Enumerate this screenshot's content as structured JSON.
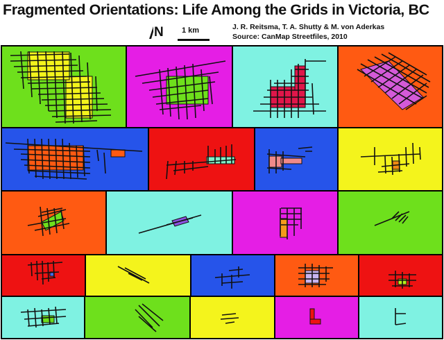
{
  "title": "Fragmented Orientations: Life Among the Grids in Victoria, BC",
  "credits": {
    "authors": "J. R. Reitsma, T. A. Shutty & M. von Aderkas",
    "source": "Source: CanMap Streetfiles, 2010"
  },
  "north_arrow": {
    "label": "N",
    "icon": "north-arrow-icon"
  },
  "scale_bar": {
    "label": "1 km"
  },
  "colors": {
    "green": "#6ee01c",
    "magenta": "#e51ee5",
    "aqua": "#7ff2e2",
    "orange": "#ff5a12",
    "blue": "#2654ea",
    "red": "#ee1212",
    "yellow": "#f4f41c",
    "street": "#111111"
  },
  "panels": [
    {
      "id": "p1",
      "color": "green",
      "fill": "#f4f41c"
    },
    {
      "id": "p2",
      "color": "magenta",
      "fill": "#6ee01c"
    },
    {
      "id": "p3",
      "color": "aqua",
      "fill": "#e0164a"
    },
    {
      "id": "p4",
      "color": "orange",
      "fill": "#d45ad8"
    },
    {
      "id": "p5",
      "color": "blue",
      "fill": "#ff5a12"
    },
    {
      "id": "p6",
      "color": "red",
      "fill": "#7ff2c8"
    },
    {
      "id": "p7",
      "color": "blue",
      "fill": "#f08a8a"
    },
    {
      "id": "p8",
      "color": "yellow",
      "fill": "#f08a12"
    },
    {
      "id": "p9",
      "color": "orange",
      "fill": "#6ee01c"
    },
    {
      "id": "p10",
      "color": "aqua",
      "fill": "#8a52e0"
    },
    {
      "id": "p11",
      "color": "magenta",
      "fill": "#f49a1c"
    },
    {
      "id": "p12",
      "color": "green",
      "fill": "#6ee01c"
    },
    {
      "id": "p13",
      "color": "red",
      "fill": "#4a6ae8"
    },
    {
      "id": "p14",
      "color": "yellow",
      "fill": "#f4f41c"
    },
    {
      "id": "p15",
      "color": "blue",
      "fill": "#2654ea"
    },
    {
      "id": "p16",
      "color": "orange",
      "fill": "#c8b4f0"
    },
    {
      "id": "p17",
      "color": "red",
      "fill": "#b4f01c"
    },
    {
      "id": "p18",
      "color": "aqua",
      "fill": "#6ee01c"
    },
    {
      "id": "p19",
      "color": "green",
      "fill": "#6ee01c"
    },
    {
      "id": "p20",
      "color": "yellow",
      "fill": "#ee1212"
    },
    {
      "id": "p21",
      "color": "magenta",
      "fill": "#7ff2e2"
    },
    {
      "id": "p22",
      "color": "aqua",
      "fill": "#7ff2e2"
    }
  ]
}
